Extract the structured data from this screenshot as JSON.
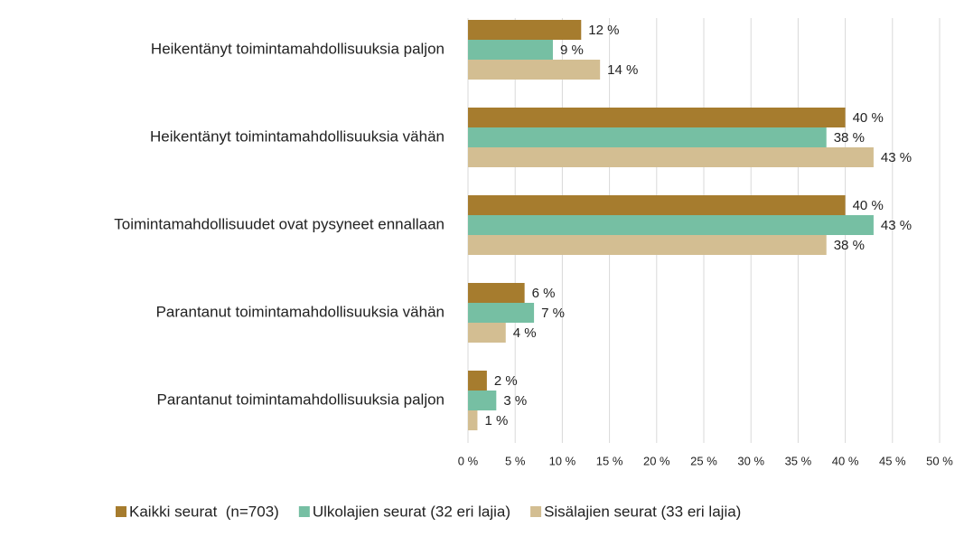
{
  "chart_data": {
    "type": "bar",
    "orientation": "horizontal",
    "categories": [
      "Heikentänyt toimintamahdollisuuksia paljon",
      "Heikentänyt toimintamahdollisuuksia vähän",
      "Toimintamahdollisuudet ovat pysyneet ennallaan",
      "Parantanut toimintamahdollisuuksia vähän",
      "Parantanut toimintamahdollisuuksia paljon"
    ],
    "series": [
      {
        "name": "Kaikki seurat  (n=703)",
        "color": "#a67c2e",
        "values": [
          12,
          40,
          40,
          6,
          2
        ],
        "value_labels": [
          "12 %",
          "40 %",
          "40 %",
          "6 %",
          "2 %"
        ]
      },
      {
        "name": "Ulkolajien seurat (32 eri lajia)",
        "color": "#76bfa3",
        "values": [
          9,
          38,
          43,
          7,
          3
        ],
        "value_labels": [
          "9 %",
          "38 %",
          "43 %",
          "7 %",
          "3 %"
        ]
      },
      {
        "name": "Sisälajien seurat (33 eri lajia)",
        "color": "#d3be92",
        "values": [
          14,
          43,
          38,
          4,
          1
        ],
        "value_labels": [
          "14 %",
          "43 %",
          "38 %",
          "4 %",
          "1 %"
        ]
      }
    ],
    "xlim": [
      0,
      50
    ],
    "xticks": [
      {
        "value": 0,
        "label": "0 %"
      },
      {
        "value": 5,
        "label": "5 %"
      },
      {
        "value": 10,
        "label": "10 %"
      },
      {
        "value": 15,
        "label": "15 %"
      },
      {
        "value": 20,
        "label": "20 %"
      },
      {
        "value": 25,
        "label": "25 %"
      },
      {
        "value": 30,
        "label": "30 %"
      },
      {
        "value": 35,
        "label": "35 %"
      },
      {
        "value": 40,
        "label": "40 %"
      },
      {
        "value": 45,
        "label": "45 %"
      },
      {
        "value": 50,
        "label": "50 %"
      }
    ],
    "grid": true,
    "legend": "bottom"
  }
}
